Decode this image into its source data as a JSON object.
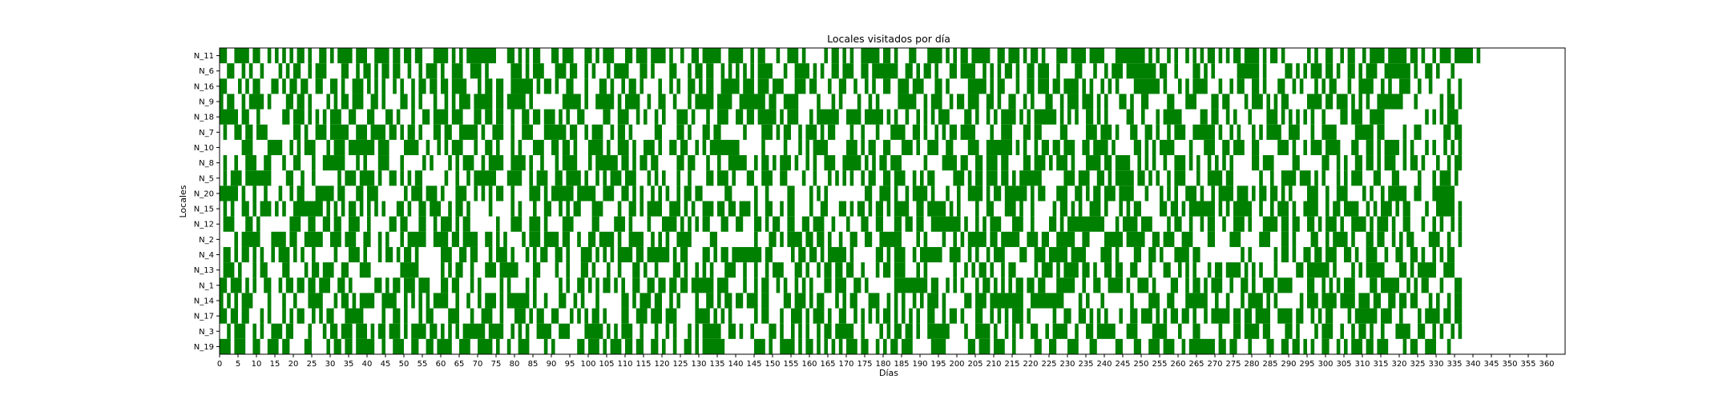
{
  "chart_data": {
    "type": "heatmap",
    "title": "Locales visitados por día",
    "xlabel": "Días",
    "ylabel": "Locales",
    "y_categories": [
      "N_11",
      "N_6",
      "N_16",
      "N_9",
      "N_18",
      "N_7",
      "N_10",
      "N_8",
      "N_5",
      "N_20",
      "N_15",
      "N_12",
      "N_2",
      "N_4",
      "N_13",
      "N_1",
      "N_14",
      "N_17",
      "N_3",
      "N_19"
    ],
    "x_ticks": [
      0,
      5,
      10,
      15,
      20,
      25,
      30,
      35,
      40,
      45,
      50,
      55,
      60,
      65,
      70,
      75,
      80,
      85,
      90,
      95,
      100,
      105,
      110,
      115,
      120,
      125,
      130,
      135,
      140,
      145,
      150,
      155,
      160,
      165,
      170,
      175,
      180,
      185,
      190,
      195,
      200,
      205,
      210,
      215,
      220,
      225,
      230,
      235,
      240,
      245,
      250,
      255,
      260,
      265,
      270,
      275,
      280,
      285,
      290,
      295,
      300,
      305,
      310,
      315,
      320,
      325,
      330,
      335,
      340,
      345,
      350,
      355,
      360
    ],
    "xlim": [
      0,
      365
    ],
    "visited_color": "#008000",
    "not_visited_color": "#ffffff",
    "grid": false,
    "legend": "none",
    "visits": [
      "1100111101100101010101101001101011110111001111011011011000111101010111111110001101010110001101110001101011100011011101111010010011011111001111001011000100111010000010110101001111101101000110001111010101101111100110111010110100011101111011110001111111101010010100101010110101011011110101101000000101001100101100101111011111011010010111011111010",
      "0011001010010000101011001011100001100101101011011001001011101001110011101000000111010111000111011001010001011110001101000011000101101100101010101011110001001111010100110111001101111111001101011010001101111001010101101001101110010000110001001011101111111101100100001101010000001111110100000110101011101101001101011100111111101001101000100",
      "1100010101100011010110110011001101001110101010010100101101101101111000101101100111111010110100110001000110100101101000010010100110101100111110111011101110001110110001001100100101001100111011100011010000011111010110001001101110110111101010010101000011111110100010101111000100101100110100011001010001010110001001111001010011100100100001001",
      "1011001011110100001101101000010101101110011010000110101000100101011101111101101111101000000001111101001111101011110010011001000101111101111001111111011001111000001000101000010010100000111110010111001011011100110100110010100011001011101110101000110100110000011000111000011011000010111010101100000111101101110101010011111110001000000101101",
      "1111101100100000011011101010101110011000110001101000100110111101110001101101100100110110111010100110000011001110010100101000111010001001110011011011111010111000101111110011110111110101001001010101110000110100101011110101011111101010100110101000001100100010111110000011011001010001000011101010101010010000110111001111000000000001010101110",
      "0100110110111000000011010011101111100111011110110101101000110110011111010011100100111000111111011001011100101101000000110000110100011011000000100001110101100101110101100001001000100011110011010010101101111000010011100011011000001100000111011101000110011010010111001111110100101000101011110011100010011110000011111011000001001100000011011",
      "0000001110000111100101011100010111011111110111000011110010010101110001001101000101000111001101101000111101001110100111010011011001010111111110000001000001000101011110000011101011001100011101001110011000011100111111101010010110110111001101111010000011010101111000010001110011011100110000011101001011101111000110011010111101010001010010101",
      "0100100111001100010011000100111111000101000111000100000101000010101110010111100111101001000101111000101111110110101101100000110110001001001111100101101011101001010011100111110101011011100000010000111101100110111011000011011101011101000111101101111001010100100111010100101010100000110111000001100000011001010011011010111001011010001001011",
      "0101110111111100001100100100000010111011110100110101011000000100100101111110001111001011100110111101001010111011100010101000100100001101110100011001110011000010010001010101001011001101110010101100000111010110111011010111111000000111011100110101111101101010010111000100111101100000001001001111011101010001010111000110001100000100010111010",
      "1111101001001000100101100011111011000110111000000010111011101000111001010101100100001110101111110111110011100110101001010100101101100000011000000100100000110000101010000000000110011101001011110100010010011110101101111110101100011100110101101110111100010001010100111010010111101110101101101010000111001001110000101001011111001100011111100",
      "0101001101011101010011111111010101011010101010001101001101110010110100000100000101000100110010101100011100001001101011110011101010011101101101110100110010110000100110001101011010110101111001101111101010000100110001110100100000101101010011101000101011000001101101011111110101011111001001011101001111001011011110010101110101100001001111101",
      "0111000110100000000111001100110110011100100000110110001100101110101100000001000111001110100001110000011000011101000010001111010101011000110011000110101100110011011100100010001100110001101101100111111110100101011100011100100001101011111111110001011110111000010110010010110010011101000111101101100110101110100111101011101001100010010100101",
      "0000101111100011110110011111001110111001100101000101111100111101101111001101010000101110111101100100110111101001111001010100111100000110000000000100011010111101101101001001100110011111100001010000100101011111011011111001110110011111001100001111101111100110111001110000110000111000001110001101000011001011110100011011001010110000111001001",
      "0110101101010010111010100100000100011101000101101011010000001110011011000101110100010101100110100011101010101111011011111101011000011010110111111110110000010110110101111101000000110101110010111111001110010100101110000110011101111101111000011101000011001101000111101100000000000101000000101101001101101110011010011100100110011010010101100",
      "0111010001011000011000010110111001100011100000000111110000001010110010001110111110000110000100100011010001001000110100100001101001010100011100100100101110001101001011011011001000101101110001010000000100101011010010110000010111010111101101001101100110001000110010101000101101111010101000100000110111111010000101011111000011010111110011100",
      "1101110101001100101101101101110011010000001101011011101110001101100010100000101000010100000010100110101011010100110011011011011011111101110000100101100101001010100011011100110100000001111111110110010101000101101010101101101100011111001001100111101001110100001100101101011100100110100111011110000110010101011100001101111100101011000100011",
      "1010101110000100010010001111000101101011110011110010101010111100100100101110101111110100100011001010001000000110101110110010100001001101011011011101100001101110101100010101100011100101010010101110100000110111011111111100111111111000010100010000000100001110011000111111001001000101111010100000010111011110111101110110011011011000101001011",
      "1101101100010100010101100101011000111110000010011010001011000011100010011100100011101011001100010101011010000110011101110111000001111010101000000101100010011101011101001100101010101101010101001100101101000110010101011101000000100110011010101000100110111010101101101001011111011011011110011110110010101100001011111101110010000101111011011",
      "0010111001010011101100001000101101110111010110111010111101101010101111110111100101010011110011100001111101010111001000100101000101011111001101001000011010010101001011011111001000010101101101001111110000100111101001010100110010111100100110111110001110000111100010001100000100011011110110000110100001011100100101101001000111100110010100101",
      "1110111001100111011000011000010110110111110010011100110011011110011100111101001001110000101000000110111010111011011001101001001101011111100000000111010011110101101010101011101100101011011100000111100000011011101110010000011001100011100011000001100011001110111001011111110110110001000011001101101010011001010111011011100001011001110001000"
    ]
  }
}
